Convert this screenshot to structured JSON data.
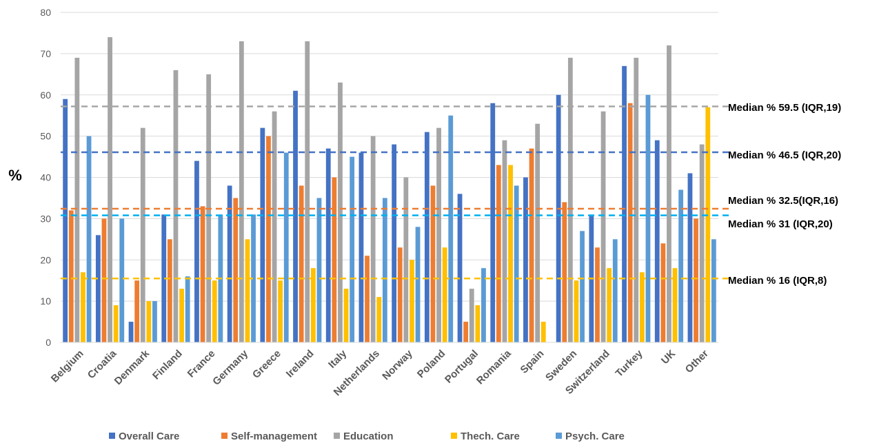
{
  "chart_data": {
    "type": "bar",
    "ylabel": "%",
    "ylim": [
      0,
      80
    ],
    "yticks": [
      0,
      10,
      20,
      30,
      40,
      50,
      60,
      70,
      80
    ],
    "grid": "horizontal",
    "legend_position": "bottom",
    "categories": [
      "Belgium",
      "Croatia",
      "Denmark",
      "Finland",
      "France",
      "Germany",
      "Greece",
      "Ireland",
      "Italy",
      "Netherlands",
      "Norway",
      "Poland",
      "Portugal",
      "Romania",
      "Spain",
      "Sweden",
      "Switzerland",
      "Turkey",
      "UK",
      "Other"
    ],
    "series": [
      {
        "name": "Overall Care",
        "color": "#4472C4",
        "values": [
          59,
          26,
          5,
          31,
          44,
          38,
          52,
          61,
          47,
          46,
          48,
          51,
          36,
          58,
          40,
          60,
          31,
          67,
          49,
          41
        ]
      },
      {
        "name": "Self-management",
        "color": "#ED7D31",
        "values": [
          32,
          30,
          15,
          25,
          33,
          35,
          50,
          38,
          40,
          21,
          23,
          38,
          5,
          43,
          47,
          34,
          23,
          58,
          24,
          30
        ]
      },
      {
        "name": "Education",
        "color": "#A5A5A5",
        "values": [
          69,
          74,
          52,
          66,
          65,
          73,
          56,
          73,
          63,
          50,
          40,
          52,
          13,
          49,
          53,
          69,
          56,
          69,
          72,
          48
        ]
      },
      {
        "name": "Thech. Care",
        "color": "#FFC000",
        "values": [
          17,
          9,
          10,
          13,
          15,
          25,
          15,
          18,
          13,
          11,
          20,
          23,
          9,
          43,
          5,
          15,
          18,
          17,
          18,
          57
        ]
      },
      {
        "name": "Psych. Care",
        "color": "#5B9BD5",
        "values": [
          50,
          30,
          10,
          16,
          31,
          31,
          46,
          35,
          45,
          35,
          28,
          55,
          18,
          38,
          0,
          27,
          25,
          60,
          37,
          25
        ]
      }
    ],
    "reference_lines": [
      {
        "label": "Median % 59.5 (IQR,19)",
        "value": 57.2,
        "color": "#A5A5A5"
      },
      {
        "label": "Median % 46.5 (IQR,20)",
        "value": 46.1,
        "color": "#4472C4"
      },
      {
        "label": "Median % 32.5(IQR,16)",
        "value": 32.4,
        "color": "#ED7D31"
      },
      {
        "label": "Median % 31 (IQR,20)",
        "value": 30.8,
        "color": "#00B0F0"
      },
      {
        "label": "Median % 16 (IQR,8)",
        "value": 15.5,
        "color": "#FFC000"
      }
    ]
  }
}
